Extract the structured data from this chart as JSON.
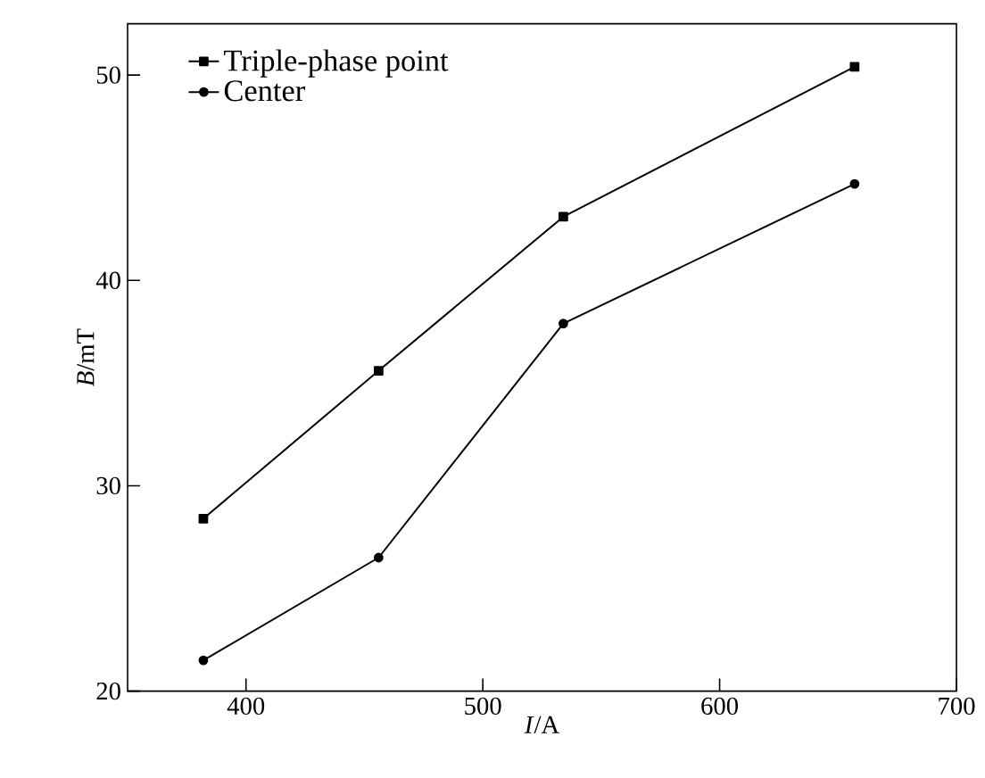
{
  "chart_data": {
    "type": "line",
    "xlabel": "*I*/A",
    "ylabel": "*B*/mT",
    "x": [
      382,
      456,
      534,
      657
    ],
    "series": [
      {
        "name": "Triple-phase point",
        "color": "#000000",
        "marker": "square",
        "values": [
          28.4,
          35.6,
          43.1,
          50.4
        ]
      },
      {
        "name": "Center",
        "color": "#000000",
        "marker": "circle",
        "values": [
          21.5,
          26.5,
          37.9,
          44.7
        ]
      }
    ],
    "xlim": [
      350,
      700
    ],
    "ylim": [
      20,
      52.5
    ],
    "xticks": [
      400,
      500,
      600,
      700
    ],
    "yticks": [
      20,
      30,
      40,
      50
    ],
    "grid": false,
    "legend": "top left",
    "line_style": "solid"
  }
}
